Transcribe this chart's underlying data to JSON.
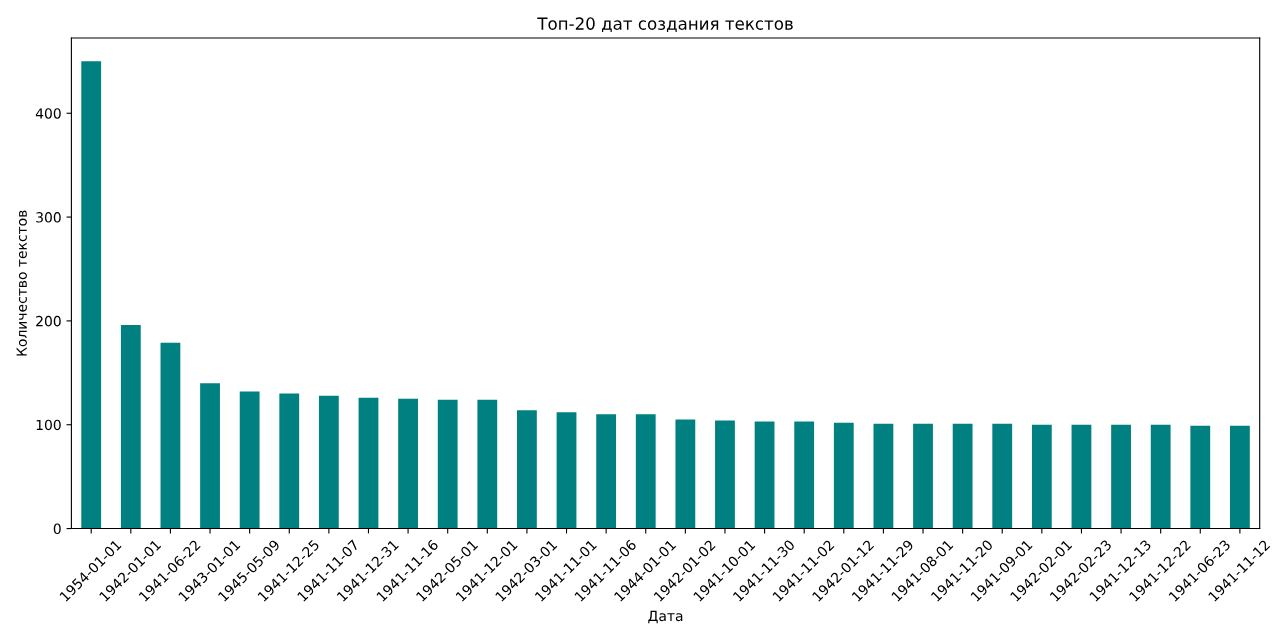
{
  "chart_data": {
    "type": "bar",
    "title": "Топ-20 дат создания текстов",
    "xlabel": "Дата",
    "ylabel": "Количество текстов",
    "categories": [
      "1954-01-01",
      "1942-01-01",
      "1941-06-22",
      "1943-01-01",
      "1945-05-09",
      "1941-12-25",
      "1941-11-07",
      "1941-12-31",
      "1941-11-16",
      "1942-05-01",
      "1941-12-01",
      "1942-03-01",
      "1941-11-01",
      "1941-11-06",
      "1944-01-01",
      "1942-01-02",
      "1941-10-01",
      "1941-11-30",
      "1941-11-02",
      "1942-01-12",
      "1941-11-29",
      "1941-08-01",
      "1941-11-20",
      "1941-09-01",
      "1942-02-01",
      "1942-02-23",
      "1941-12-13",
      "1941-12-22",
      "1941-06-23",
      "1941-11-12"
    ],
    "values": [
      450,
      196,
      179,
      140,
      132,
      130,
      128,
      126,
      125,
      124,
      124,
      114,
      112,
      110,
      110,
      105,
      104,
      103,
      103,
      102,
      101,
      101,
      101,
      101,
      100,
      100,
      100,
      100,
      99,
      99
    ],
    "color": "#008080",
    "ylim": [
      0,
      472.5
    ],
    "yticks": [
      0,
      100,
      200,
      300,
      400
    ],
    "grid": false,
    "legend": false
  }
}
